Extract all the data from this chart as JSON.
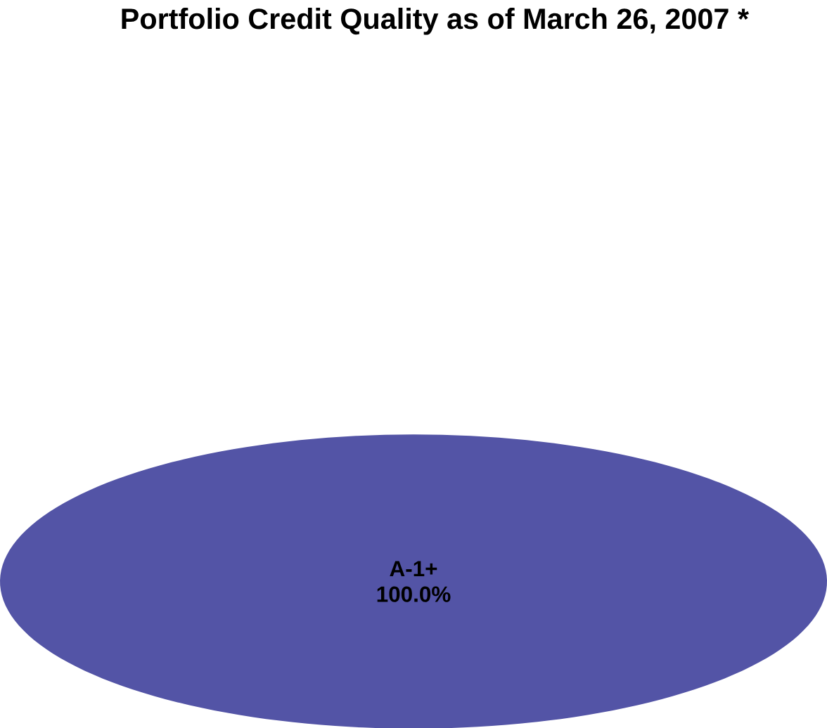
{
  "chart_data": {
    "type": "pie",
    "title": "Portfolio Credit Quality as of March 26, 2007 *",
    "categories": [
      "A-1+"
    ],
    "values": [
      100
    ],
    "colors": [
      "#5354a6"
    ],
    "value_labels": [
      "100.0%"
    ]
  }
}
